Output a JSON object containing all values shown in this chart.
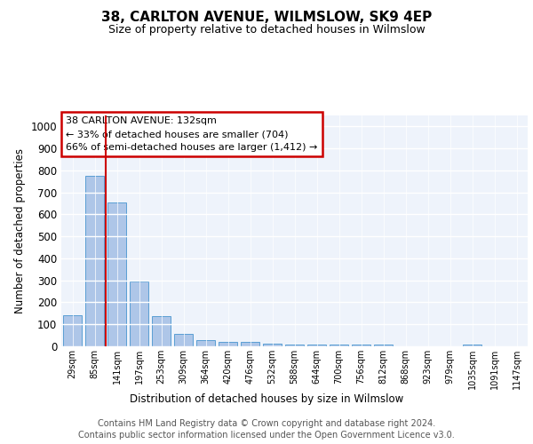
{
  "title": "38, CARLTON AVENUE, WILMSLOW, SK9 4EP",
  "subtitle": "Size of property relative to detached houses in Wilmslow",
  "xlabel": "Distribution of detached houses by size in Wilmslow",
  "ylabel": "Number of detached properties",
  "bar_labels": [
    "29sqm",
    "85sqm",
    "141sqm",
    "197sqm",
    "253sqm",
    "309sqm",
    "364sqm",
    "420sqm",
    "476sqm",
    "532sqm",
    "588sqm",
    "644sqm",
    "700sqm",
    "756sqm",
    "812sqm",
    "868sqm",
    "923sqm",
    "979sqm",
    "1035sqm",
    "1091sqm",
    "1147sqm"
  ],
  "bar_values": [
    140,
    775,
    655,
    295,
    138,
    57,
    28,
    20,
    20,
    14,
    9,
    9,
    9,
    8,
    8,
    0,
    0,
    0,
    8,
    0,
    0
  ],
  "bar_color": "#aec6e8",
  "bar_edge_color": "#5a9fd4",
  "vline_x": 1.5,
  "vline_color": "#cc0000",
  "annotation_text": "38 CARLTON AVENUE: 132sqm\n← 33% of detached houses are smaller (704)\n66% of semi-detached houses are larger (1,412) →",
  "annotation_box_color": "#ffffff",
  "annotation_box_edge": "#cc0000",
  "ylim": [
    0,
    1050
  ],
  "yticks": [
    0,
    100,
    200,
    300,
    400,
    500,
    600,
    700,
    800,
    900,
    1000
  ],
  "footer_line1": "Contains HM Land Registry data © Crown copyright and database right 2024.",
  "footer_line2": "Contains public sector information licensed under the Open Government Licence v3.0.",
  "plot_bg_color": "#eef3fb"
}
